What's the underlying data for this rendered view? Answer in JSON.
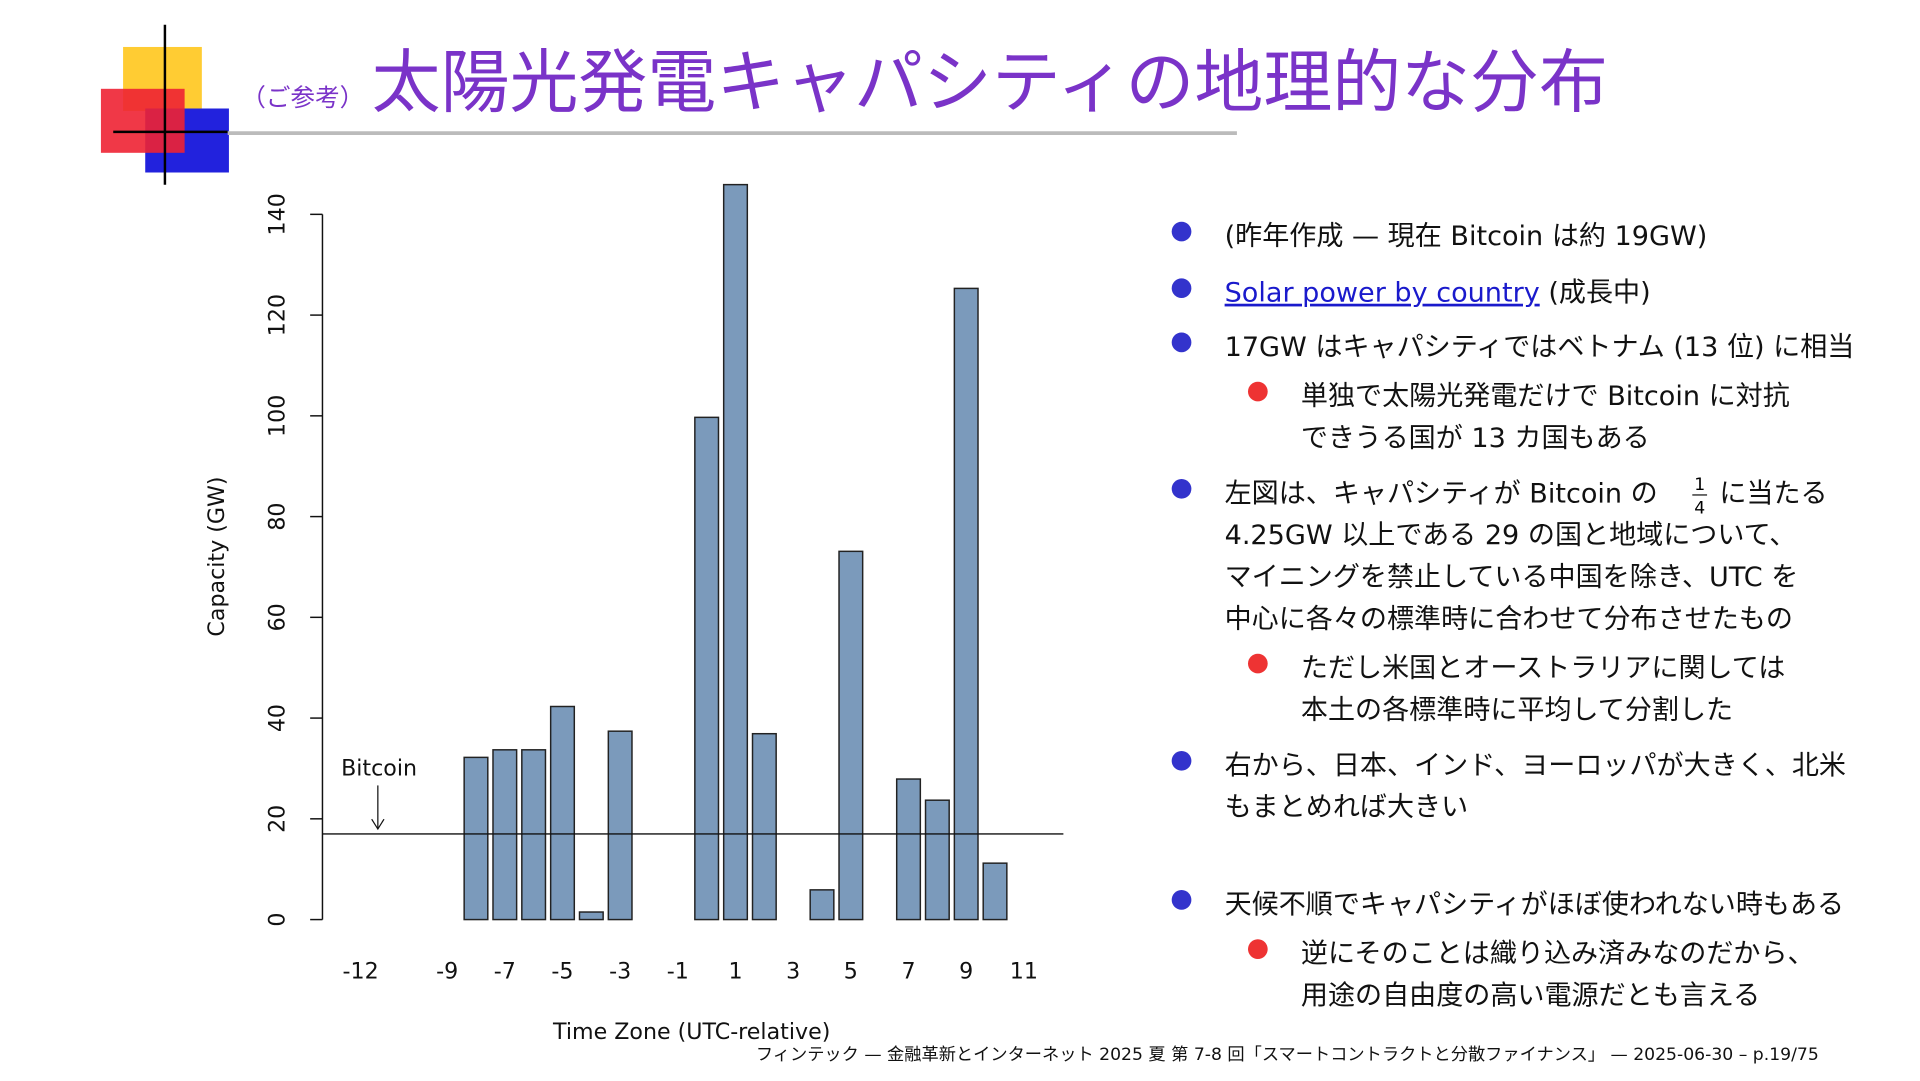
{
  "header": {
    "note": "（ご参考）",
    "title": "太陽光発電キャパシティの地理的な分布"
  },
  "chart_data": {
    "type": "bar",
    "x": [
      -12,
      -11,
      -10,
      -9,
      -8,
      -7,
      -6,
      -5,
      -4,
      -3,
      -2,
      -1,
      0,
      1,
      2,
      3,
      4,
      5,
      6,
      7,
      8,
      9,
      10,
      11
    ],
    "values": [
      0,
      0,
      0,
      0,
      32.2,
      33.7,
      33.7,
      42.3,
      1.5,
      37.4,
      0,
      0,
      99.7,
      145.9,
      36.9,
      0,
      5.9,
      73.1,
      0,
      27.9,
      23.7,
      125.3,
      11.2,
      0
    ],
    "color": "#7b9abb",
    "xlim": [
      -12.5,
      11.5
    ],
    "xticks": [
      -12,
      -9,
      -7,
      -5,
      -3,
      -1,
      1,
      3,
      5,
      7,
      9,
      11
    ],
    "ylim": [
      0,
      140
    ],
    "yticks": [
      0,
      20,
      40,
      60,
      80,
      100,
      120,
      140
    ],
    "x_label": "Time Zone (UTC-relative)",
    "y_label": "Capacity (GW)",
    "reference_line": {
      "value": 17,
      "label": "Bitcoin"
    }
  },
  "bullets": [
    {
      "lines": [
        "(昨年作成 — 現在 Bitcoin は約 19GW)"
      ]
    },
    {
      "link": "Solar power by country",
      "after": " (成長中)"
    },
    {
      "lines": [
        "17GW はキャパシティではベトナム (13 位) に相当"
      ],
      "children": [
        {
          "lines": [
            "単独で太陽光発電だけで Bitcoin に対抗",
            "できうる国が 13 カ国もある"
          ]
        }
      ]
    },
    {
      "first": {
        "before": "左図は、キャパシティが Bitcoin の",
        "numerator": "1",
        "denominator": "4",
        "after": "に当たる"
      },
      "lines": [
        "4.25GW 以上である 29 の国と地域について、",
        "マイニングを禁止している中国を除き、UTC を",
        "中心に各々の標準時に合わせて分布させたもの"
      ],
      "children": [
        {
          "lines": [
            "ただし米国とオーストラリアに関しては",
            "本土の各標準時に平均して分割した"
          ]
        }
      ]
    },
    {
      "lines": [
        "右から、日本、インド、ヨーロッパが大きく、北米",
        "もまとめれば大きい"
      ]
    },
    {
      "lines": [
        "天候不順でキャパシティがほぼ使われない時もある"
      ],
      "children": [
        {
          "lines": [
            "逆にそのことは織り込み済みなのだから、",
            "用途の自由度の高い電源だとも言える"
          ]
        }
      ]
    }
  ],
  "footer": "フィンテック — 金融革新とインターネット 2025 夏 第 7-8 回「スマートコントラクトと分散ファイナンス」 — 2025-06-30 – p.19/75"
}
